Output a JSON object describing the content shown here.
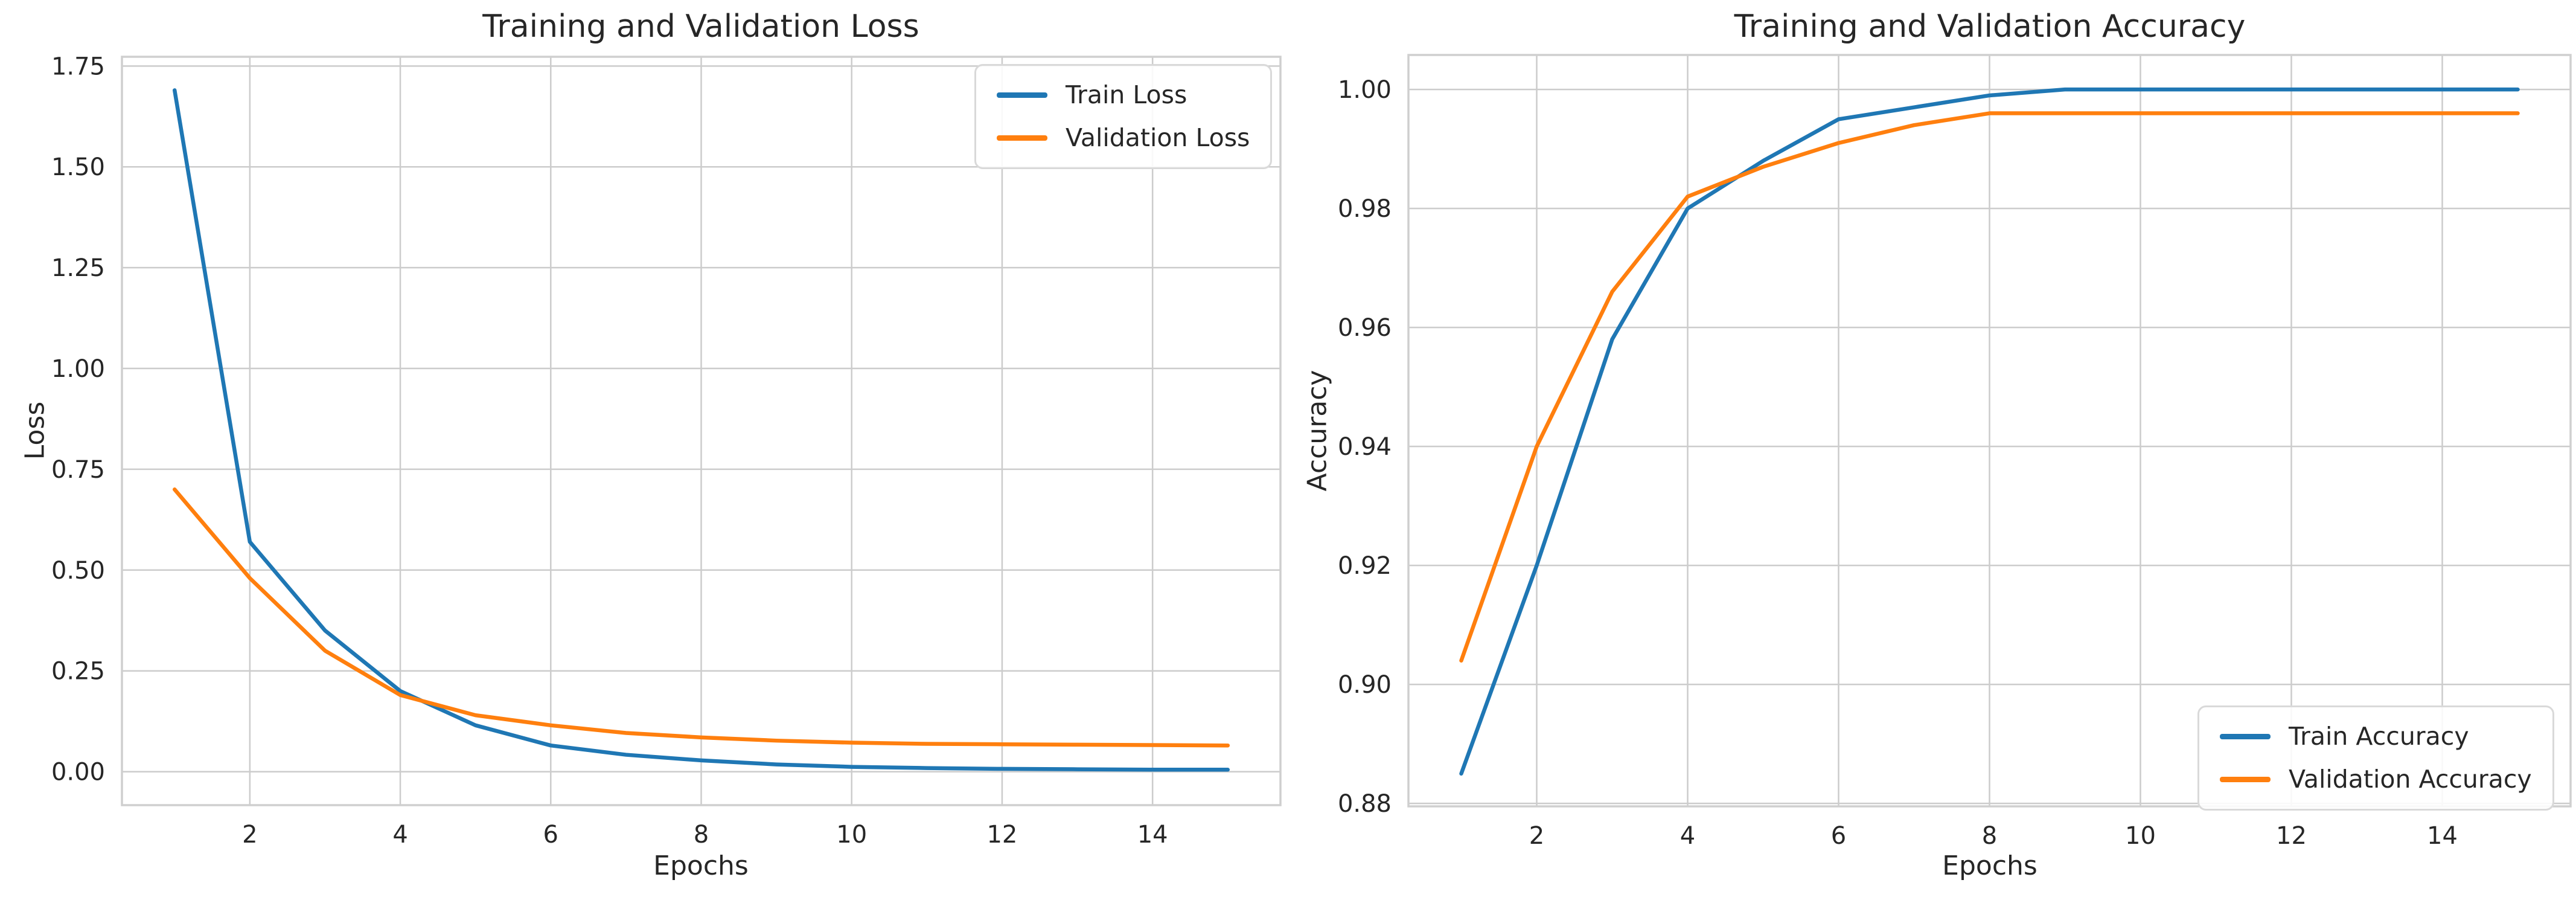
{
  "figure": {
    "background_color": "#ffffff",
    "grid_color": "#cccccc",
    "spine_color": "#cfcfcf",
    "text_color": "#262626",
    "tick_color": "#555555"
  },
  "chart_data": [
    {
      "type": "line",
      "title": "Training and Validation Loss",
      "xlabel": "Epochs",
      "ylabel": "Loss",
      "x": [
        1,
        2,
        3,
        4,
        5,
        6,
        7,
        8,
        9,
        10,
        11,
        12,
        13,
        14,
        15
      ],
      "series": [
        {
          "name": "Train Loss",
          "color": "#1f77b4",
          "values": [
            1.69,
            0.57,
            0.35,
            0.2,
            0.115,
            0.065,
            0.042,
            0.028,
            0.018,
            0.012,
            0.009,
            0.007,
            0.006,
            0.005,
            0.005
          ]
        },
        {
          "name": "Validation Loss",
          "color": "#ff7f0e",
          "values": [
            0.7,
            0.48,
            0.3,
            0.19,
            0.14,
            0.115,
            0.096,
            0.085,
            0.077,
            0.072,
            0.069,
            0.068,
            0.067,
            0.066,
            0.065
          ]
        }
      ],
      "xlim": [
        0.3,
        15.7
      ],
      "ylim": [
        -0.083,
        1.773
      ],
      "xticks": [
        2,
        4,
        6,
        8,
        10,
        12,
        14
      ],
      "xtick_labels": [
        "2",
        "4",
        "6",
        "8",
        "10",
        "12",
        "14"
      ],
      "yticks": [
        0.0,
        0.25,
        0.5,
        0.75,
        1.0,
        1.25,
        1.5,
        1.75
      ],
      "ytick_labels": [
        "0.00",
        "0.25",
        "0.50",
        "0.75",
        "1.00",
        "1.25",
        "1.50",
        "1.75"
      ],
      "grid": true,
      "legend_position": "upper right"
    },
    {
      "type": "line",
      "title": "Training and Validation Accuracy",
      "xlabel": "Epochs",
      "ylabel": "Accuracy",
      "x": [
        1,
        2,
        3,
        4,
        5,
        6,
        7,
        8,
        9,
        10,
        11,
        12,
        13,
        14,
        15
      ],
      "series": [
        {
          "name": "Train Accuracy",
          "color": "#1f77b4",
          "values": [
            0.885,
            0.92,
            0.958,
            0.98,
            0.988,
            0.995,
            0.997,
            0.999,
            1.0,
            1.0,
            1.0,
            1.0,
            1.0,
            1.0,
            1.0
          ]
        },
        {
          "name": "Validation Accuracy",
          "color": "#ff7f0e",
          "values": [
            0.904,
            0.94,
            0.966,
            0.982,
            0.987,
            0.991,
            0.994,
            0.996,
            0.996,
            0.996,
            0.996,
            0.996,
            0.996,
            0.996,
            0.996
          ]
        }
      ],
      "xlim": [
        0.3,
        15.7
      ],
      "ylim": [
        0.8795,
        1.0058
      ],
      "xticks": [
        2,
        4,
        6,
        8,
        10,
        12,
        14
      ],
      "xtick_labels": [
        "2",
        "4",
        "6",
        "8",
        "10",
        "12",
        "14"
      ],
      "yticks": [
        0.88,
        0.9,
        0.92,
        0.94,
        0.96,
        0.98,
        1.0
      ],
      "ytick_labels": [
        "0.88",
        "0.90",
        "0.92",
        "0.94",
        "0.96",
        "0.98",
        "1.00"
      ],
      "grid": true,
      "legend_position": "lower right"
    }
  ]
}
